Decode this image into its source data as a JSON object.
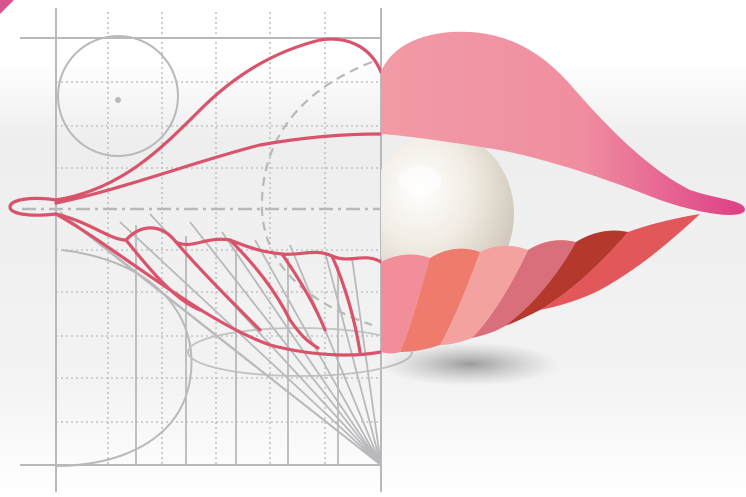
{
  "illustration": {
    "subject": "lips-pearl-blueprint",
    "palette": {
      "blueprint_stroke": "#b9b9bc",
      "blueprint_dotted": "#c2c2c5",
      "outline_red": "#d9536a",
      "upper_lip_pink": "#f29aa6",
      "upper_lip_magenta": "#dd3f86",
      "pearl_base": "#f2ede4",
      "pearl_shadow": "#c9c1b6",
      "petal_1": "#f28e9a",
      "petal_2": "#ee7b6c",
      "petal_3": "#f4a2a0",
      "petal_4": "#d96f7a",
      "petal_5": "#b4382c",
      "petal_6": "#e2585a",
      "corner_accent": "#d9538d"
    }
  }
}
